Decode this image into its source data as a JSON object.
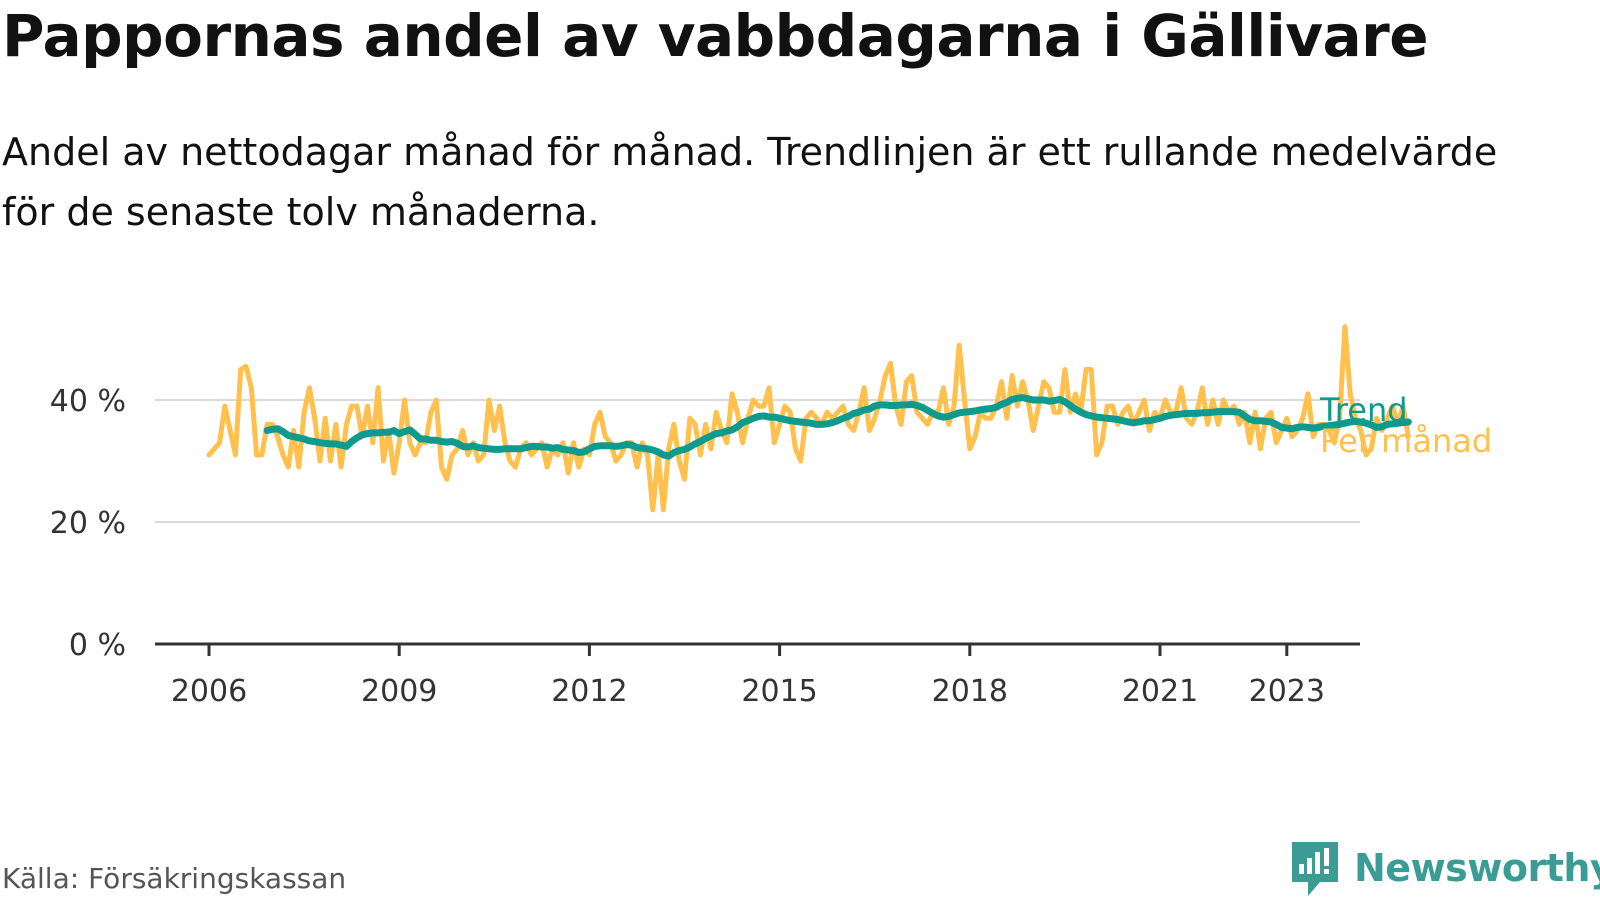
{
  "header": {
    "title": "Pappornas andel av vabbdagarna i Gällivare",
    "subtitle": "Andel av nettodagar månad för månad. Trendlinjen är ett rullande medelvärde för de senaste tolv månaderna."
  },
  "footer": {
    "source": "Källa: Försäkringskassan",
    "brand": "Newsworthy"
  },
  "colors": {
    "monthly": "#ffc04d",
    "trend": "#0e9a8c",
    "grid": "#d9d9d9",
    "axis": "#333333",
    "brand": "#3a9c95"
  },
  "chart_data": {
    "type": "line",
    "x_unit": "year",
    "ytick_labels": [
      "0 %",
      "20 %",
      "40 %"
    ],
    "yticks": [
      0,
      20,
      40
    ],
    "xtick_labels": [
      "2006",
      "2009",
      "2012",
      "2015",
      "2018",
      "2021",
      "2023"
    ],
    "xticks": [
      2006,
      2009,
      2012,
      2015,
      2018,
      2021,
      2023
    ],
    "xlim": [
      2005.1,
      2024.5
    ],
    "ylim": [
      0,
      40
    ],
    "grid": true,
    "legend": "line-end labels",
    "series": [
      {
        "name": "Per månad",
        "color": "#ffc04d",
        "start": 2006.0,
        "step_months": 1,
        "values": [
          31,
          32,
          33,
          39,
          35,
          31,
          45,
          45.5,
          42,
          31,
          31,
          36,
          36,
          34,
          31,
          29,
          35,
          29,
          38,
          42,
          37,
          30,
          37,
          30,
          36,
          29,
          36,
          39,
          39,
          34,
          39,
          33,
          42,
          30,
          35,
          28,
          33,
          40,
          33,
          31,
          33,
          33,
          38,
          40,
          29,
          27,
          31,
          32,
          35,
          31,
          33,
          30,
          31,
          40,
          35,
          39,
          33,
          30,
          29,
          32,
          33,
          31,
          32,
          33,
          29,
          32,
          31,
          33,
          28,
          33,
          29,
          32,
          31,
          36,
          38,
          34,
          33,
          30,
          31,
          33,
          33,
          29,
          33,
          31,
          22,
          31,
          22,
          32,
          36,
          30,
          27,
          37,
          36,
          31,
          36,
          32,
          38,
          35,
          33,
          41,
          38,
          33,
          37,
          40,
          39,
          39,
          42,
          33,
          36,
          39,
          38,
          32,
          30,
          37,
          38,
          37,
          36,
          38,
          37,
          38,
          39,
          36,
          35,
          38,
          42,
          35,
          37,
          40,
          44,
          46,
          39,
          36,
          43,
          44,
          38,
          37,
          36,
          38,
          38,
          42,
          36,
          39,
          49,
          40,
          32,
          34,
          38,
          37,
          37,
          39,
          43,
          37,
          44,
          39,
          43,
          40,
          35,
          39,
          43,
          42,
          38,
          38,
          45,
          38,
          41,
          38,
          45,
          45,
          31,
          33,
          39,
          39,
          36,
          38,
          39,
          36,
          38,
          40,
          35,
          38,
          37,
          40,
          38,
          38,
          42,
          37,
          36,
          38,
          42,
          36,
          40,
          36,
          40,
          38,
          39,
          36,
          38,
          33,
          38,
          32,
          37,
          38,
          33,
          35,
          37,
          34,
          35,
          37,
          41,
          34,
          36,
          36,
          35,
          33,
          37,
          52,
          41,
          37,
          35,
          31,
          32,
          37,
          35,
          37,
          39,
          36,
          39,
          34
        ]
      },
      {
        "name": "Trend",
        "color": "#0e9a8c",
        "start": 2006.917,
        "step_months": 1,
        "values": [
          35,
          35.2,
          35.3,
          34.8,
          34.2,
          34,
          33.8,
          33.6,
          33.3,
          33.2,
          33,
          32.9,
          32.8,
          32.8,
          32.6,
          32.4,
          33.2,
          33.8,
          34.3,
          34.5,
          34.6,
          34.6,
          34.7,
          34.7,
          35,
          34.5,
          34.8,
          35.1,
          34.4,
          33.6,
          33.6,
          33.4,
          33.4,
          33.2,
          33.1,
          33.2,
          32.9,
          32.4,
          32.3,
          32.5,
          32.2,
          32.1,
          32,
          31.9,
          31.9,
          32,
          32,
          32,
          32,
          32.2,
          32.4,
          32.4,
          32.3,
          32.3,
          32.1,
          32.2,
          31.9,
          31.8,
          31.7,
          31.4,
          31.5,
          32,
          32.4,
          32.5,
          32.5,
          32.5,
          32.4,
          32.5,
          32.7,
          32.6,
          32.2,
          32.1,
          32,
          31.8,
          31.5,
          31,
          30.8,
          31.4,
          31.7,
          31.9,
          32.3,
          32.8,
          33.2,
          33.7,
          34.1,
          34.5,
          34.6,
          34.9,
          35.1,
          35.6,
          36.3,
          36.6,
          37,
          37.3,
          37.4,
          37.2,
          37.2,
          37,
          36.8,
          36.6,
          36.5,
          36.4,
          36.3,
          36.2,
          36,
          36,
          36.1,
          36.3,
          36.6,
          37,
          37.3,
          37.8,
          38,
          38.4,
          38.5,
          39,
          39.2,
          39.2,
          39.1,
          39.1,
          39.2,
          39.2,
          39.3,
          39.1,
          38.8,
          38.3,
          37.8,
          37.4,
          37.2,
          37.3,
          37.6,
          37.9,
          38,
          38.1,
          38.2,
          38.4,
          38.5,
          38.6,
          38.8,
          39.3,
          39.6,
          40.1,
          40.3,
          40.4,
          40.2,
          40,
          40,
          40,
          39.8,
          39.9,
          40.1,
          39.7,
          39.1,
          38.5,
          38,
          37.6,
          37.4,
          37.2,
          37.1,
          37,
          36.9,
          36.8,
          36.6,
          36.4,
          36.3,
          36.4,
          36.6,
          36.6,
          36.8,
          37,
          37.3,
          37.5,
          37.6,
          37.7,
          37.8,
          37.8,
          37.8,
          37.9,
          37.9,
          38,
          38.1,
          38.1,
          38.1,
          38.1,
          38,
          37.4,
          36.8,
          36.6,
          36.6,
          36.5,
          36.4,
          36,
          35.5,
          35.4,
          35.3,
          35.5,
          35.6,
          35.5,
          35.4,
          35.5,
          35.7,
          35.8,
          35.9,
          36,
          36.2,
          36.4,
          36.5,
          36.4,
          36.2,
          35.9,
          35.5,
          35.6,
          36,
          36.1,
          36.2,
          36.3,
          36.4
        ]
      }
    ]
  }
}
